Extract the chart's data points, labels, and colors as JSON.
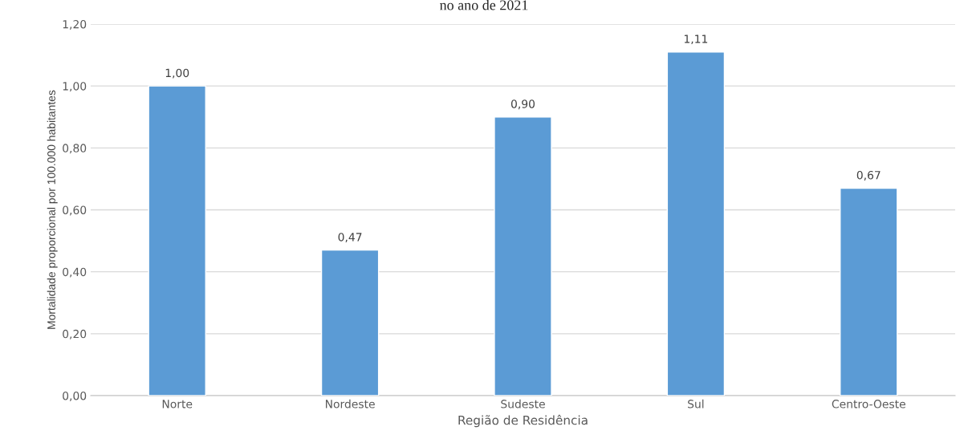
{
  "chart_data": {
    "type": "bar",
    "title": "no ano de 2021",
    "xlabel": "Região de Residência",
    "ylabel": "Mortalidade proporcional por 100.000 habitantes",
    "categories": [
      "Norte",
      "Nordeste",
      "Sudeste",
      "Sul",
      "Centro-Oeste"
    ],
    "values": [
      1.0,
      0.47,
      0.9,
      1.11,
      0.67
    ],
    "color": "#5b9bd5",
    "value_labels": [
      "1,00",
      "0,47",
      "0,90",
      "1,11",
      "0,67"
    ],
    "ylim": [
      0,
      1.2
    ],
    "yticks": [
      {
        "value": 0,
        "label": "0,00"
      },
      {
        "value": 0.2,
        "label": "0,20"
      },
      {
        "value": 0.4,
        "label": "0,40"
      },
      {
        "value": 0.6,
        "label": "0,60"
      },
      {
        "value": 0.8,
        "label": "0,80"
      },
      {
        "value": 1.0,
        "label": "1,00"
      },
      {
        "value": 1.2,
        "label": "1,20"
      }
    ],
    "grid": "y",
    "legend": false
  }
}
